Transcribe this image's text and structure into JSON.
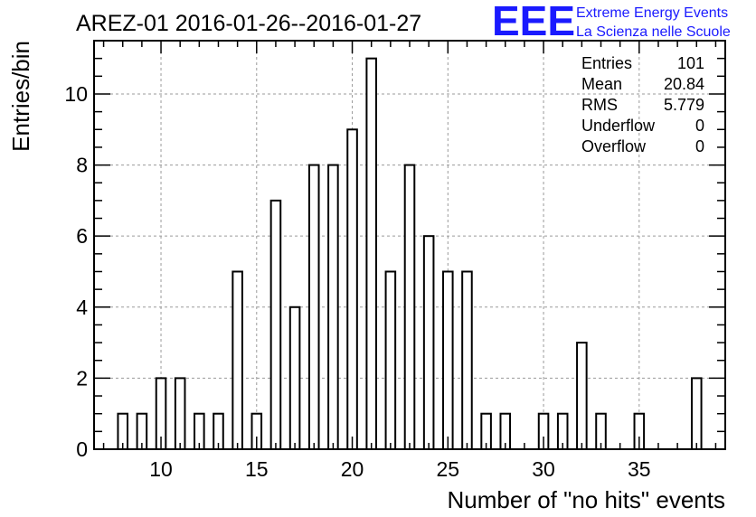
{
  "chart_data": {
    "type": "bar",
    "title": "AREZ-01 2016-01-26--2016-01-27",
    "xlabel": "Number of \"no hits\" events",
    "ylabel": "Entries/bin",
    "xlim": [
      6.5,
      39.5
    ],
    "ylim": [
      0,
      11.5
    ],
    "xticks": [
      10,
      15,
      20,
      25,
      30,
      35
    ],
    "yticks": [
      0,
      2,
      4,
      6,
      8,
      10
    ],
    "grid": true,
    "bin_width": 0.5,
    "bins": [
      {
        "x": 8,
        "value": 1
      },
      {
        "x": 9,
        "value": 1
      },
      {
        "x": 10,
        "value": 2
      },
      {
        "x": 11,
        "value": 2
      },
      {
        "x": 12,
        "value": 1
      },
      {
        "x": 13,
        "value": 1
      },
      {
        "x": 14,
        "value": 5
      },
      {
        "x": 15,
        "value": 1
      },
      {
        "x": 16,
        "value": 7
      },
      {
        "x": 17,
        "value": 4
      },
      {
        "x": 18,
        "value": 8
      },
      {
        "x": 19,
        "value": 8
      },
      {
        "x": 20,
        "value": 9
      },
      {
        "x": 21,
        "value": 11
      },
      {
        "x": 22,
        "value": 5
      },
      {
        "x": 23,
        "value": 8
      },
      {
        "x": 24,
        "value": 6
      },
      {
        "x": 25,
        "value": 5
      },
      {
        "x": 26,
        "value": 5
      },
      {
        "x": 27,
        "value": 1
      },
      {
        "x": 28,
        "value": 1
      },
      {
        "x": 30,
        "value": 1
      },
      {
        "x": 31,
        "value": 1
      },
      {
        "x": 32,
        "value": 3
      },
      {
        "x": 33,
        "value": 1
      },
      {
        "x": 35,
        "value": 1
      },
      {
        "x": 38,
        "value": 2
      }
    ],
    "stats": [
      {
        "label": "Entries",
        "value": "101"
      },
      {
        "label": "Mean",
        "value": "20.84"
      },
      {
        "label": "RMS",
        "value": "5.779"
      },
      {
        "label": "Underflow",
        "value": "0"
      },
      {
        "label": "Overflow",
        "value": "0"
      }
    ]
  },
  "logo": {
    "mark": "EEE",
    "line1": "Extreme Energy Events",
    "line2": "La Scienza nelle Scuole",
    "color": "#1a1aff"
  }
}
